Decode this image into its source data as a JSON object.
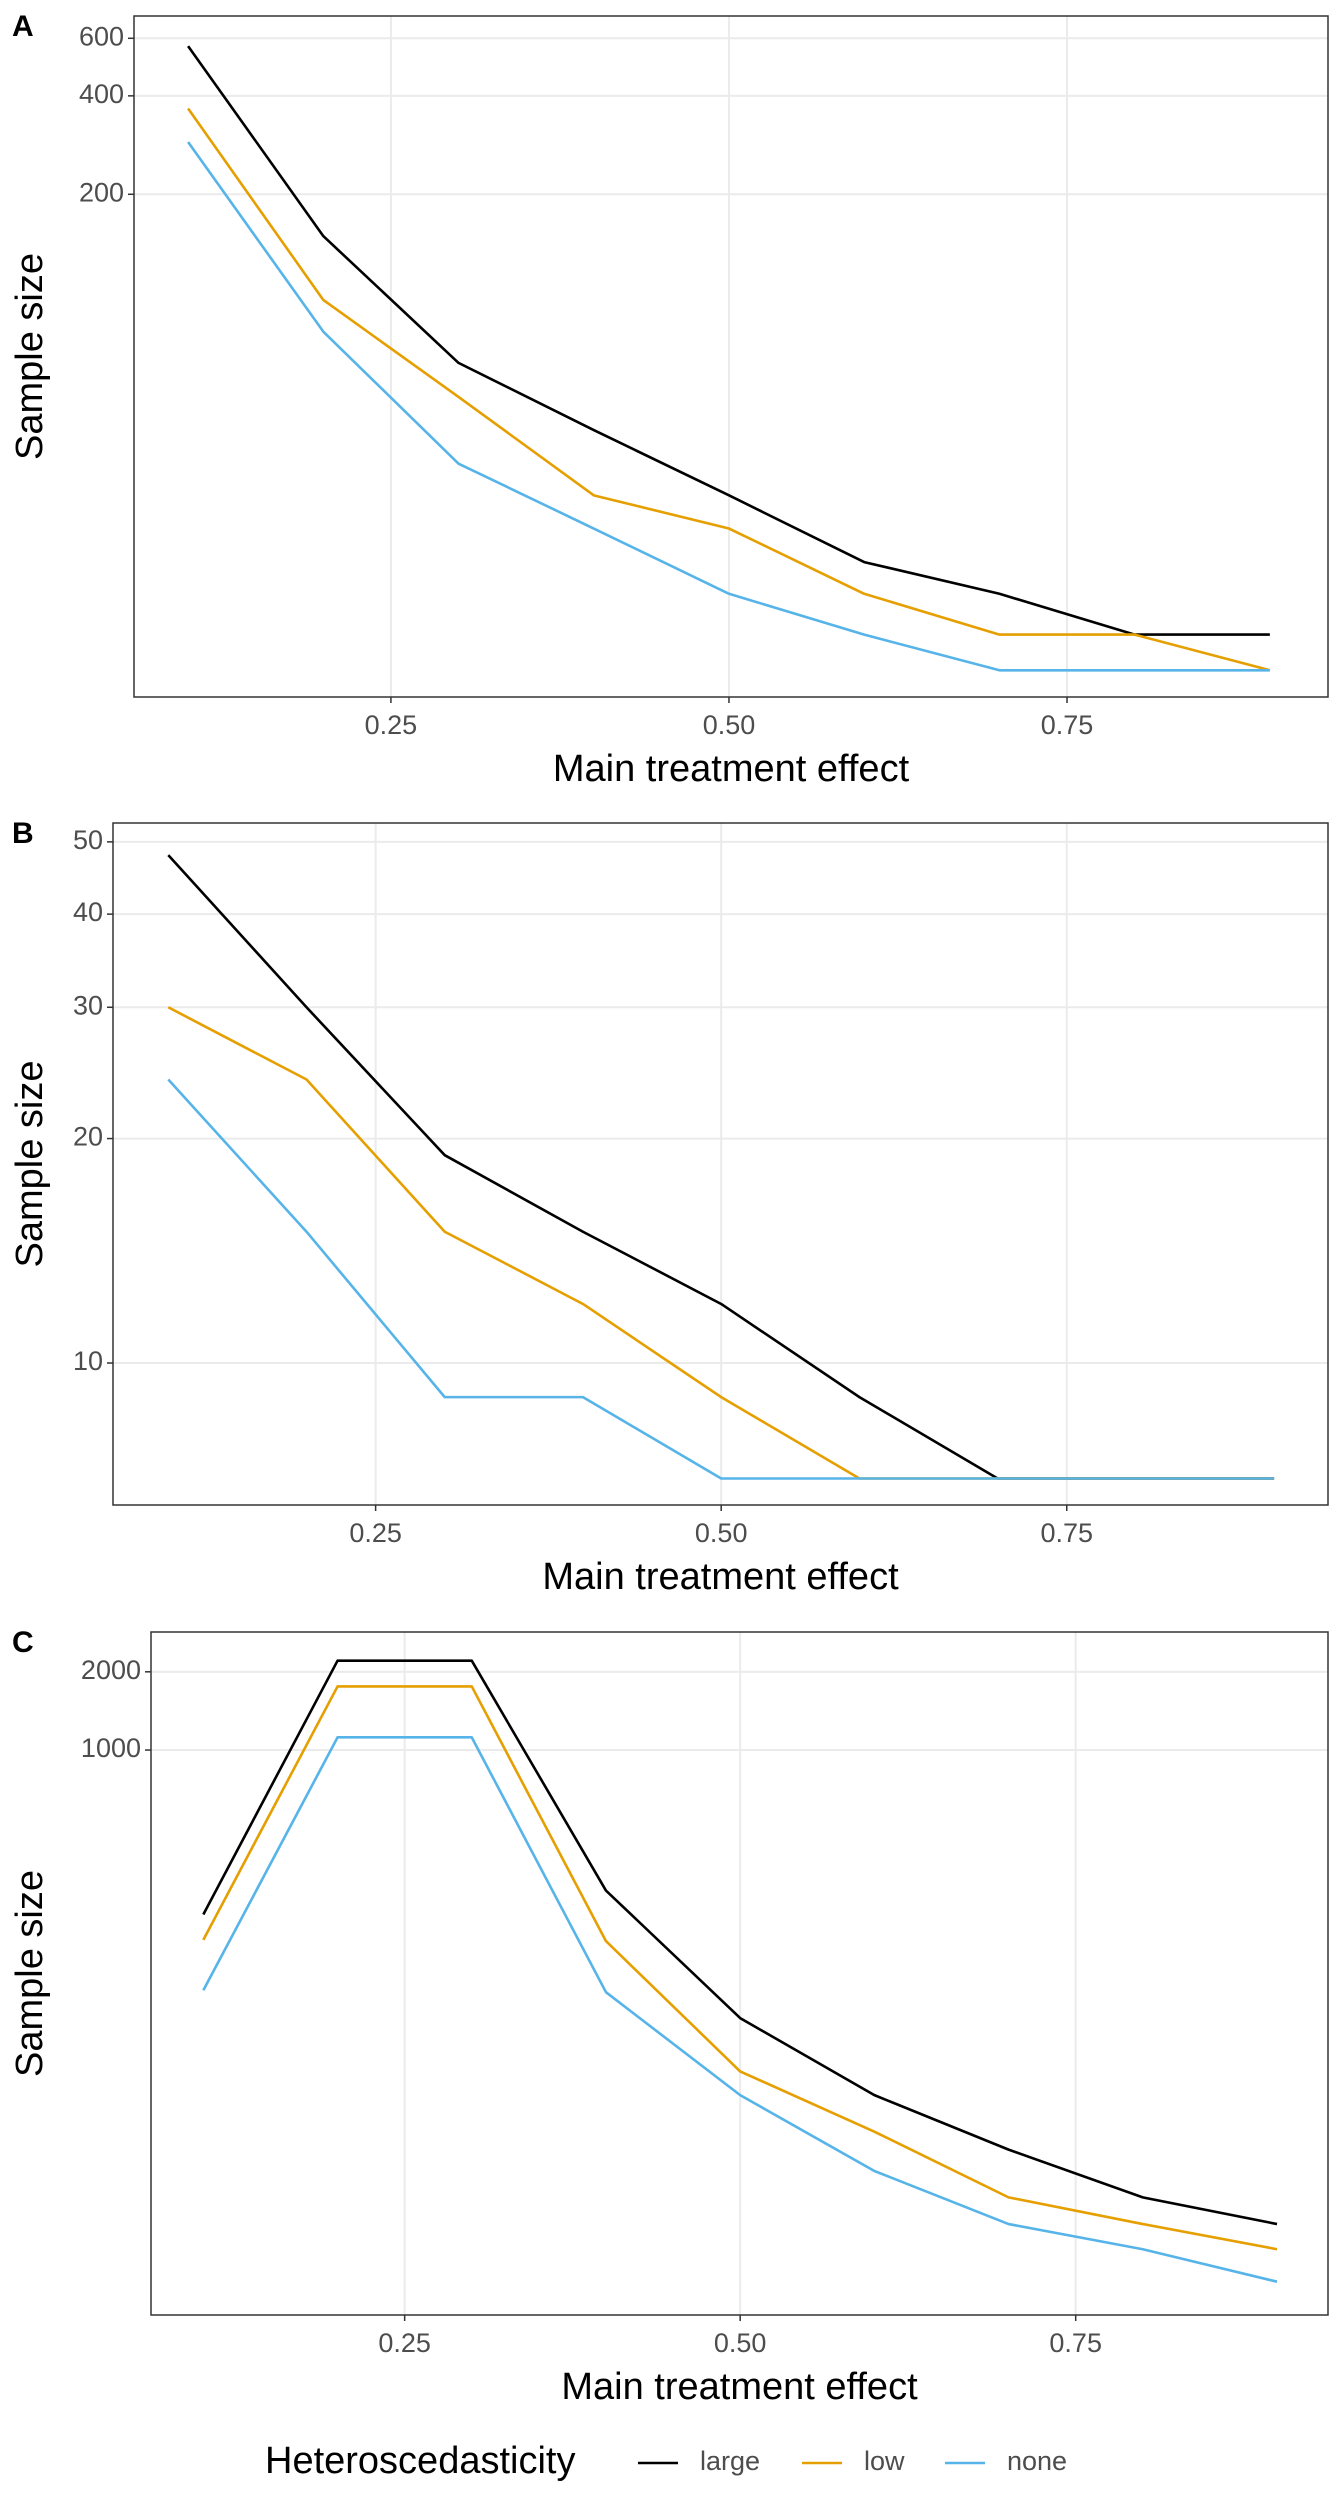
{
  "chart_data": [
    {
      "type": "line",
      "panel_label": "A",
      "x_label": "Main treatment effect",
      "y_label": "Sample size",
      "x": [
        0.1,
        0.2,
        0.3,
        0.4,
        0.5,
        0.6,
        0.7,
        0.8,
        0.9
      ],
      "series": [
        {
          "name": "large",
          "color": "#000000",
          "values": [
            568,
            149,
            61,
            38,
            24,
            15,
            12,
            9,
            9
          ]
        },
        {
          "name": "low",
          "color": "#E69F00",
          "values": [
            366,
            95,
            48,
            24,
            19,
            12,
            9,
            9,
            7
          ]
        },
        {
          "name": "none",
          "color": "#56B4E9",
          "values": [
            289,
            76,
            30,
            19,
            12,
            9,
            7,
            7,
            7
          ]
        }
      ],
      "xlim": [
        0.06,
        0.943
      ],
      "xticks": [
        0.25,
        {
          "value": 0.5,
          "label": "0.50"
        },
        0.75
      ],
      "ylim": [
        5.8,
        702
      ],
      "yticks": [
        200,
        400,
        600
      ],
      "log_y": true,
      "grid": true
    },
    {
      "type": "line",
      "panel_label": "B",
      "x_label": "Main treatment effect",
      "y_label": "Sample size",
      "x": [
        0.1,
        0.2,
        0.3,
        0.4,
        0.5,
        0.6,
        0.7,
        0.8,
        0.9
      ],
      "series": [
        {
          "name": "large",
          "color": "#000000",
          "values": [
            48,
            30,
            19,
            15,
            12,
            9,
            7,
            7,
            7
          ]
        },
        {
          "name": "low",
          "color": "#E69F00",
          "values": [
            30,
            24,
            15,
            12,
            9,
            7,
            7,
            7,
            7
          ]
        },
        {
          "name": "none",
          "color": "#56B4E9",
          "values": [
            24,
            15,
            9,
            9,
            7,
            7,
            7,
            7,
            7
          ]
        }
      ],
      "xlim": [
        0.06,
        0.939
      ],
      "xticks": [
        0.25,
        {
          "value": 0.5,
          "label": "0.50"
        },
        0.75
      ],
      "ylim": [
        6.45,
        53
      ],
      "yticks": [
        10,
        20,
        30,
        40,
        50
      ],
      "log_y": true,
      "grid": true
    },
    {
      "type": "line",
      "panel_label": "C",
      "x_label": "Main treatment effect",
      "y_label": "Sample size",
      "x": [
        0.1,
        0.2,
        0.3,
        0.4,
        0.5,
        0.6,
        0.7,
        0.8,
        0.9
      ],
      "series": [
        {
          "name": "large",
          "color": "#000000",
          "values": [
            233,
            2207,
            2207,
            288,
            93,
            47,
            29,
            19,
            15
          ]
        },
        {
          "name": "low",
          "color": "#E69F00",
          "values": [
            186,
            1757,
            1757,
            184,
            58,
            34,
            19,
            15,
            12
          ]
        },
        {
          "name": "none",
          "color": "#56B4E9",
          "values": [
            119,
            1119,
            1119,
            117,
            47,
            24,
            15,
            12,
            9
          ]
        }
      ],
      "xlim": [
        0.061,
        0.938
      ],
      "xticks": [
        0.25,
        {
          "value": 0.5,
          "label": "0.50"
        },
        0.75
      ],
      "ylim": [
        6.7,
        2846
      ],
      "yticks": [
        1000,
        2000
      ],
      "log_y": true,
      "grid": true
    }
  ],
  "legend": {
    "title": "Heteroscedasticity",
    "position": "bottom"
  }
}
